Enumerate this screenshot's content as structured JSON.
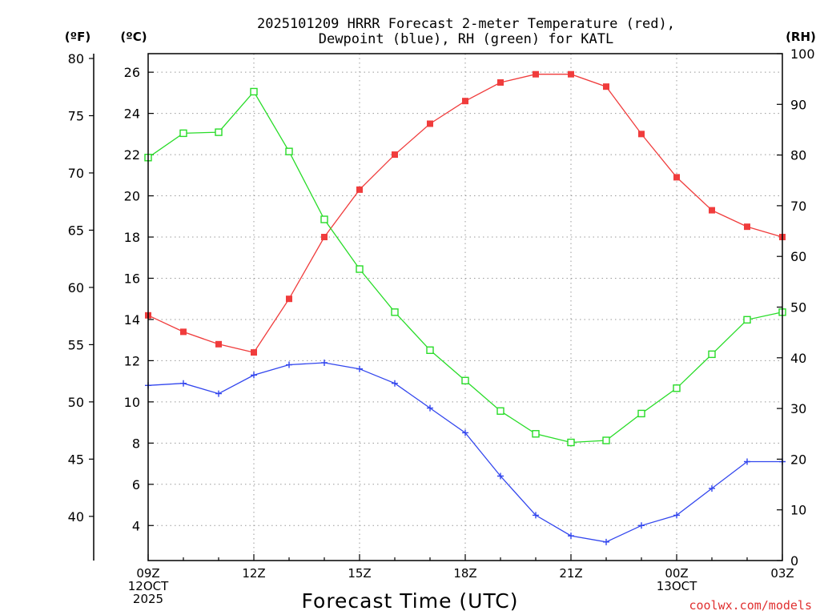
{
  "chart_data": {
    "type": "line",
    "title_line1": "2025101209 HRRR Forecast 2-meter Temperature (red),",
    "title_line2": "Dewpoint (blue), RH (green) for KATL",
    "xlabel": "Forecast Time (UTC)",
    "axis_units": {
      "fahrenheit": "(ºF)",
      "celsius": "(ºC)",
      "rh": "(RH)"
    },
    "ylim_celsius": [
      2.3,
      26.9
    ],
    "ylim_rh": [
      0,
      100
    ],
    "fahrenheit_ticks": [
      40,
      45,
      50,
      55,
      60,
      65,
      70,
      75,
      80
    ],
    "celsius_ticks": [
      4,
      6,
      8,
      10,
      12,
      14,
      16,
      18,
      20,
      22,
      24,
      26
    ],
    "rh_ticks": [
      0,
      10,
      20,
      30,
      40,
      50,
      60,
      70,
      80,
      90,
      100
    ],
    "x_hours": [
      0,
      1,
      2,
      3,
      4,
      5,
      6,
      7,
      8,
      9,
      10,
      11,
      12,
      13,
      14,
      15,
      16,
      17,
      18
    ],
    "x_tick_labels": [
      {
        "hour": 0,
        "lines": [
          "09Z",
          "12OCT",
          "2025"
        ]
      },
      {
        "hour": 3,
        "lines": [
          "12Z"
        ]
      },
      {
        "hour": 6,
        "lines": [
          "15Z"
        ]
      },
      {
        "hour": 9,
        "lines": [
          "18Z"
        ]
      },
      {
        "hour": 12,
        "lines": [
          "21Z"
        ]
      },
      {
        "hour": 15,
        "lines": [
          "00Z",
          "13OCT"
        ]
      },
      {
        "hour": 18,
        "lines": [
          "03Z"
        ]
      }
    ],
    "series": [
      {
        "name": "Temperature",
        "axis": "celsius",
        "color": "#f03c3c",
        "marker": "filled-square",
        "values": [
          14.2,
          13.4,
          12.8,
          12.4,
          15.0,
          18.0,
          20.3,
          22.0,
          23.5,
          24.6,
          25.5,
          25.9,
          25.9,
          25.3,
          23.0,
          20.9,
          19.3,
          18.5,
          18.0
        ]
      },
      {
        "name": "Dewpoint",
        "axis": "celsius",
        "color": "#3246ee",
        "marker": "plus",
        "values": [
          10.8,
          10.9,
          10.4,
          11.3,
          11.8,
          11.9,
          11.6,
          10.9,
          9.7,
          8.5,
          6.4,
          4.5,
          3.5,
          3.2,
          4.0,
          4.5,
          5.8,
          7.1,
          7.1
        ]
      },
      {
        "name": "RH",
        "axis": "rh",
        "color": "#28dc28",
        "marker": "open-square",
        "values": [
          79.5,
          84.3,
          84.5,
          92.5,
          80.7,
          67.3,
          57.5,
          49.0,
          41.5,
          35.5,
          29.5,
          25.0,
          23.3,
          23.7,
          29.0,
          34.0,
          40.7,
          47.5,
          49.0
        ]
      }
    ]
  },
  "credit": "coolwx.com/models"
}
